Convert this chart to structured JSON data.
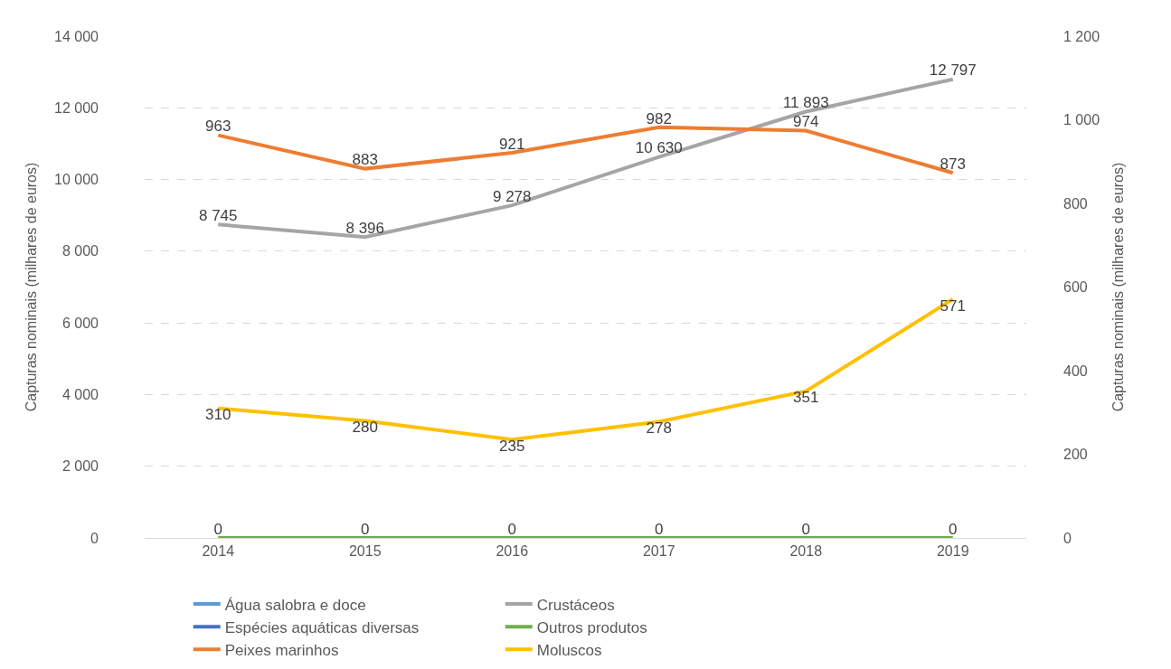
{
  "chart_data": {
    "type": "line",
    "categories": [
      "2014",
      "2015",
      "2016",
      "2017",
      "2018",
      "2019"
    ],
    "ylabel": "Capturas nominais (milhares de euros)",
    "y2label": "Capturas nominais (milhares de euros)",
    "ylim": [
      0,
      14000
    ],
    "yticks": [
      {
        "value": 0,
        "label": "0"
      },
      {
        "value": 2000,
        "label": "2 000"
      },
      {
        "value": 4000,
        "label": "4 000"
      },
      {
        "value": 6000,
        "label": "6 000"
      },
      {
        "value": 8000,
        "label": "8 000"
      },
      {
        "value": 10000,
        "label": "10 000"
      },
      {
        "value": 12000,
        "label": "12 000"
      },
      {
        "value": 14000,
        "label": "14 000"
      }
    ],
    "y2lim": [
      0,
      1200
    ],
    "y2ticks": [
      {
        "value": 0,
        "label": "0"
      },
      200,
      400,
      600,
      800,
      {
        "value": 1000,
        "label": "1 000"
      },
      {
        "value": 1200,
        "label": "1 200"
      }
    ],
    "grid": "y",
    "legend": "bottom",
    "marker": "none",
    "line_style": "solid",
    "series": [
      {
        "name": "Água salobra e doce",
        "color": "#5b9bd5",
        "values": [
          null,
          null,
          null,
          null,
          null,
          null
        ]
      },
      {
        "name": "Crustáceos",
        "color": "#a5a5a5",
        "values": [
          8745,
          8396,
          9278,
          10630,
          11893,
          12797
        ],
        "value_labels": [
          "8 745",
          "8 396",
          "9 278",
          "10 630",
          "11 893",
          "12 797"
        ]
      },
      {
        "name": "Espécies aquáticas diversas",
        "color": "#4472c4",
        "values": [
          null,
          null,
          null,
          null,
          null,
          null
        ]
      },
      {
        "name": "Outros produtos",
        "color": "#70ad47",
        "values": [
          0,
          0,
          0,
          0,
          0,
          0
        ],
        "value_labels": [
          "0",
          "0",
          "0",
          "0",
          "0",
          "0"
        ]
      },
      {
        "name": "Peixes marinhos",
        "color": "#ed7d31",
        "axis": "y2",
        "values": [
          963,
          883,
          921,
          982,
          974,
          873
        ],
        "value_labels": [
          "963",
          "883",
          "921",
          "982",
          "974",
          "873"
        ]
      },
      {
        "name": "Moluscos",
        "color": "#ffc000",
        "axis": "y2",
        "values": [
          310,
          280,
          235,
          278,
          351,
          571
        ],
        "value_labels": [
          "310",
          "280",
          "235",
          "278",
          "351",
          "571"
        ]
      }
    ]
  }
}
